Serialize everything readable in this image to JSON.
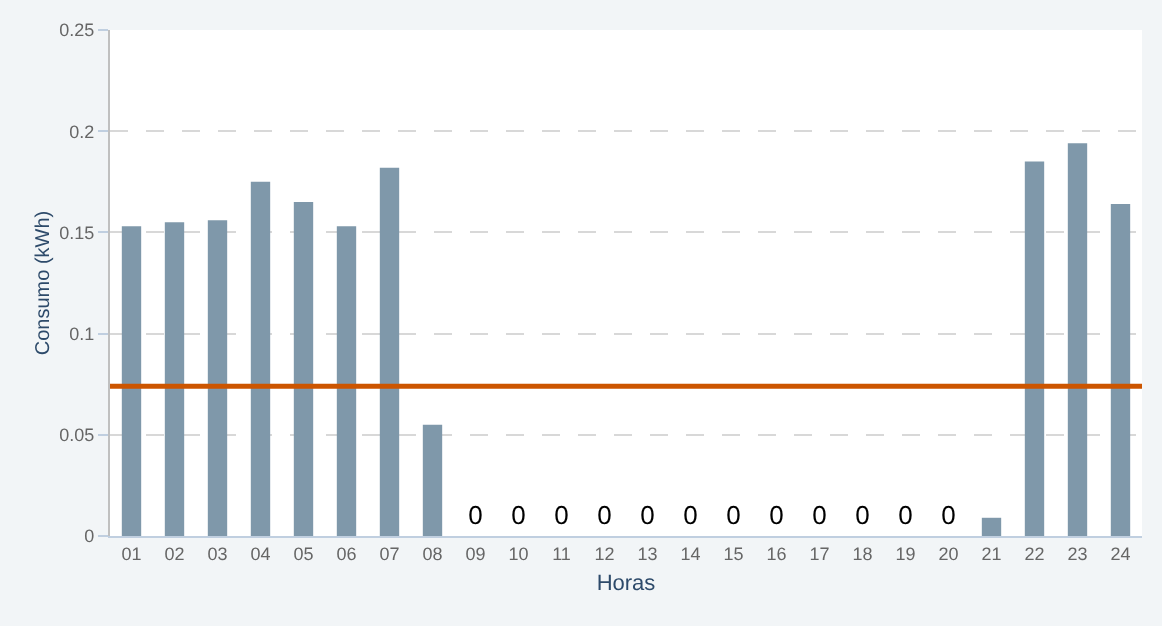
{
  "chart_data": {
    "type": "bar",
    "xlabel": "Horas",
    "ylabel": "Consumo (kWh)",
    "categories": [
      "01",
      "02",
      "03",
      "04",
      "05",
      "06",
      "07",
      "08",
      "09",
      "10",
      "11",
      "12",
      "13",
      "14",
      "15",
      "16",
      "17",
      "18",
      "19",
      "20",
      "21",
      "22",
      "23",
      "24"
    ],
    "values": [
      0.153,
      0.155,
      0.156,
      0.175,
      0.165,
      0.153,
      0.182,
      0.055,
      0,
      0,
      0,
      0,
      0,
      0,
      0,
      0,
      0,
      0,
      0,
      0,
      0.009,
      0.185,
      0.194,
      0.164
    ],
    "value_labels": [
      null,
      null,
      null,
      null,
      null,
      null,
      null,
      null,
      "0",
      "0",
      "0",
      "0",
      "0",
      "0",
      "0",
      "0",
      "0",
      "0",
      "0",
      "0",
      null,
      null,
      null,
      null
    ],
    "color": "#7f98aa",
    "ylim": [
      0,
      0.25
    ],
    "yticks": [
      0,
      0.05,
      0.1,
      0.15,
      0.2,
      0.25
    ],
    "grid": "y",
    "ref_lines": [
      {
        "axis": "y",
        "value": 0.074,
        "color": "#cc5500"
      }
    ]
  }
}
